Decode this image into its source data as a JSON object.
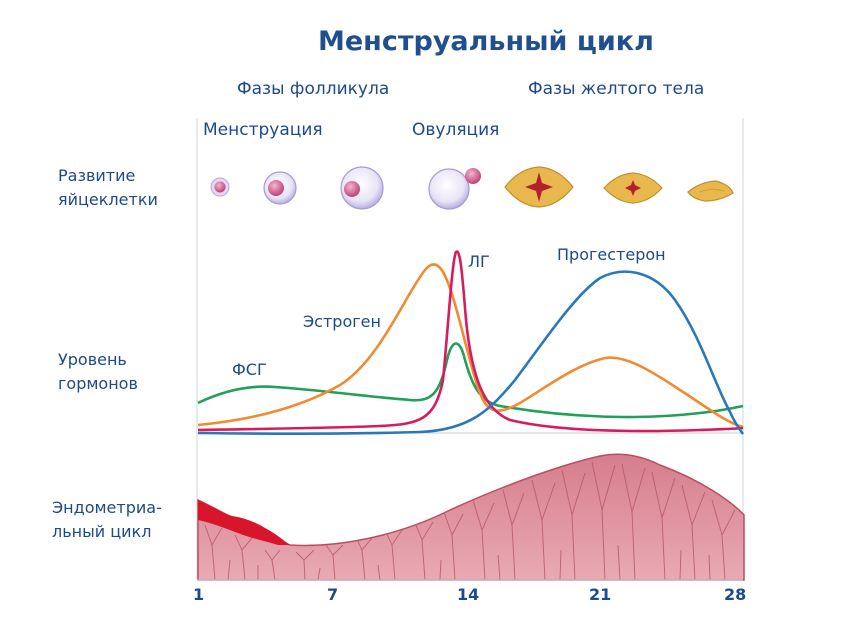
{
  "title": "Менструальный цикл",
  "phases": {
    "follicular": "Фазы фолликула",
    "luteal": "Фазы желтого тела"
  },
  "events": {
    "menstruation": "Менструация",
    "ovulation": "Овуляция"
  },
  "rows": {
    "egg_line1": "Развитие",
    "egg_line2": "яйцеклетки",
    "hormones_line1": "Уровень",
    "hormones_line2": "гормонов",
    "endo_line1": "Эндометриа-",
    "endo_line2": "льный цикл"
  },
  "curves": {
    "fsh": {
      "label": "ФСГ",
      "color": "#22a05a"
    },
    "estrogen": {
      "label": "Эстроген",
      "color": "#f28a30"
    },
    "lh": {
      "label": "ЛГ",
      "color": "#d81b60"
    },
    "progesterone": {
      "label": "Прогестерон",
      "color": "#2a78b8"
    }
  },
  "x_axis_ticks": [
    "1",
    "7",
    "14",
    "21",
    "28"
  ]
}
